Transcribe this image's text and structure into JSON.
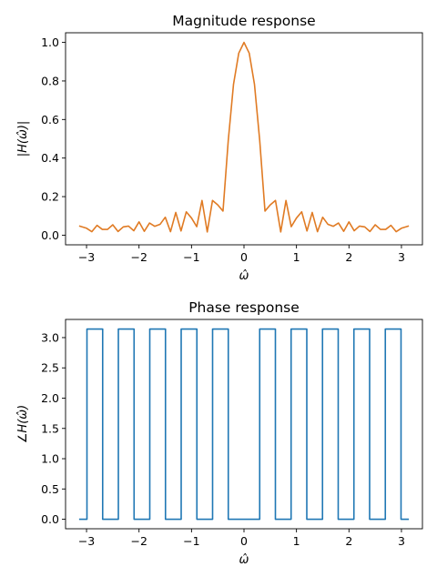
{
  "chart_data": [
    {
      "type": "line",
      "title": "Magnitude response",
      "xlabel": "ω̂",
      "ylabel": "|H(ω̂)|",
      "xlim": [
        -3.4,
        3.4
      ],
      "ylim": [
        -0.05,
        1.05
      ],
      "xticks": [
        -3,
        -2,
        -1,
        0,
        1,
        2,
        3
      ],
      "xtick_labels": [
        "−3",
        "−2",
        "−1",
        "0",
        "1",
        "2",
        "3"
      ],
      "yticks": [
        0.0,
        0.2,
        0.4,
        0.6,
        0.8,
        1.0
      ],
      "ytick_labels": [
        "0.0",
        "0.2",
        "0.4",
        "0.6",
        "0.8",
        "1.0"
      ],
      "grid": false,
      "series": [
        {
          "color": "#e07b24",
          "description": "Dirichlet kernel |sin(Lω/2)/(L sin(ω/2))| with L=21, sampled over [-π, π]",
          "x": [
            -3.1416,
            -3.0,
            -2.9,
            -2.8,
            -2.7,
            -2.6,
            -2.5,
            -2.4,
            -2.3,
            -2.2,
            -2.1,
            -2.0,
            -1.9,
            -1.8,
            -1.7,
            -1.6,
            -1.5,
            -1.4,
            -1.3,
            -1.2,
            -1.1,
            -1.0,
            -0.9,
            -0.8,
            -0.7,
            -0.6,
            -0.5,
            -0.4,
            -0.3,
            -0.2,
            -0.1,
            0.0,
            0.1,
            0.2,
            0.3,
            0.4,
            0.5,
            0.6,
            0.7,
            0.8,
            0.9,
            1.0,
            1.1,
            1.2,
            1.3,
            1.4,
            1.5,
            1.6,
            1.7,
            1.8,
            1.9,
            2.0,
            2.1,
            2.2,
            2.3,
            2.4,
            2.5,
            2.6,
            2.7,
            2.8,
            2.9,
            3.0,
            3.1416
          ],
          "y": [
            0.048,
            0.036,
            0.018,
            0.051,
            0.03,
            0.03,
            0.054,
            0.019,
            0.043,
            0.047,
            0.023,
            0.069,
            0.02,
            0.063,
            0.046,
            0.056,
            0.093,
            0.018,
            0.118,
            0.022,
            0.121,
            0.089,
            0.044,
            0.18,
            0.017,
            0.18,
            0.157,
            0.125,
            0.49,
            0.782,
            0.944,
            1.0,
            0.944,
            0.782,
            0.49,
            0.125,
            0.157,
            0.18,
            0.017,
            0.18,
            0.044,
            0.089,
            0.121,
            0.022,
            0.118,
            0.018,
            0.093,
            0.056,
            0.046,
            0.063,
            0.02,
            0.069,
            0.023,
            0.047,
            0.043,
            0.019,
            0.054,
            0.03,
            0.03,
            0.051,
            0.018,
            0.036,
            0.048
          ]
        }
      ]
    },
    {
      "type": "line",
      "title": "Phase response",
      "xlabel": "ω̂",
      "ylabel": "∠H(ω̂)",
      "xlim": [
        -3.4,
        3.4
      ],
      "ylim": [
        -0.157,
        3.3
      ],
      "xticks": [
        -3,
        -2,
        -1,
        0,
        1,
        2,
        3
      ],
      "xtick_labels": [
        "−3",
        "−2",
        "−1",
        "0",
        "1",
        "2",
        "3"
      ],
      "yticks": [
        0.0,
        0.5,
        1.0,
        1.5,
        2.0,
        2.5,
        3.0
      ],
      "ytick_labels": [
        "0.0",
        "0.5",
        "1.0",
        "1.5",
        "2.0",
        "2.5",
        "3.0"
      ],
      "grid": false,
      "series": [
        {
          "color": "#1f77b4",
          "description": "Phase steps between 0 and π at the zeros of the magnitude response",
          "step": "post",
          "x": [
            -3.1416,
            -2.992,
            -2.6928,
            -2.3936,
            -2.0944,
            -1.7952,
            -1.496,
            -1.1968,
            -0.8976,
            -0.5984,
            -0.2992,
            0.2992,
            0.5984,
            0.8976,
            1.1968,
            1.496,
            1.7952,
            2.0944,
            2.3936,
            2.6928,
            2.992,
            3.1416
          ],
          "y": [
            0.0,
            3.1416,
            0.0,
            3.1416,
            0.0,
            3.1416,
            0.0,
            3.1416,
            0.0,
            3.1416,
            0.0,
            3.1416,
            0.0,
            3.1416,
            0.0,
            3.1416,
            0.0,
            3.1416,
            0.0,
            3.1416,
            0.0,
            0.0
          ]
        }
      ]
    }
  ]
}
